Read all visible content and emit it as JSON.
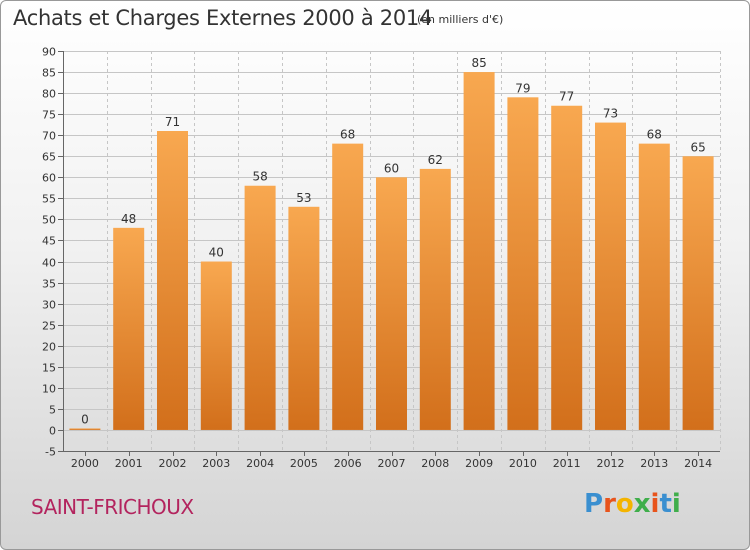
{
  "header": {
    "title": "Achats et Charges Externes 2000 à 2014",
    "unit": "(en milliers d'€)"
  },
  "footer": {
    "commune": "SAINT-FRICHOUX",
    "logo": {
      "letters": [
        "P",
        "r",
        "o",
        "x",
        "i",
        "t",
        "i"
      ],
      "colors": [
        "#3a8fd0",
        "#e8541c",
        "#f4b400",
        "#3fae4b",
        "#e8541c",
        "#3a8fd0",
        "#3fae4b"
      ]
    }
  },
  "colors": {
    "bar_light": "#f8a850",
    "bar_dark": "#d26f1b",
    "grid": "#c6c6c6",
    "text": "#333333"
  },
  "chart_data": {
    "type": "bar",
    "title": "Achats et Charges Externes 2000 à 2014",
    "subtitle": "(en milliers d'€)",
    "categories": [
      "2000",
      "2001",
      "2002",
      "2003",
      "2004",
      "2005",
      "2006",
      "2007",
      "2008",
      "2009",
      "2010",
      "2011",
      "2012",
      "2013",
      "2014"
    ],
    "values": [
      0,
      48,
      71,
      40,
      58,
      53,
      68,
      60,
      62,
      85,
      79,
      77,
      73,
      68,
      65
    ],
    "ylim": [
      -5,
      90
    ],
    "yticks": [
      -5,
      0,
      5,
      10,
      15,
      20,
      25,
      30,
      35,
      40,
      45,
      50,
      55,
      60,
      65,
      70,
      75,
      80,
      85,
      90
    ],
    "grid": true,
    "legend": "none",
    "data_labels": true
  }
}
